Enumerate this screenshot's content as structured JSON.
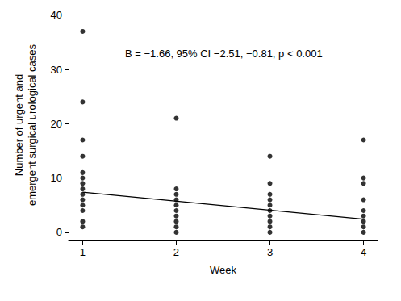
{
  "chart_data": {
    "type": "scatter",
    "annotation": "B = −1.66, 95% CI −2.51, −0.81, p < 0.001",
    "x_label": "Week",
    "y_label": "Number of urgent and\nemergent surgical urological cases",
    "x": [
      1,
      1,
      1,
      1,
      1,
      1,
      1,
      1,
      1,
      1,
      1,
      1,
      1,
      1,
      2,
      2,
      2,
      2,
      2,
      2,
      2,
      2,
      2,
      2,
      3,
      3,
      3,
      3,
      3,
      3,
      3,
      3,
      3,
      3,
      4,
      4,
      4,
      4,
      4,
      4,
      4,
      4,
      4
    ],
    "values": [
      37,
      24,
      17,
      14,
      11,
      10,
      9,
      8,
      7,
      6,
      5,
      4,
      2,
      1,
      21,
      8,
      7,
      6,
      5,
      4,
      3,
      2,
      1,
      0,
      14,
      9,
      7,
      6,
      5,
      4,
      3,
      2,
      1,
      0,
      17,
      10,
      9,
      6,
      4,
      3,
      2,
      1,
      0
    ],
    "color": "#000000",
    "fit_line": {
      "x": [
        1,
        4
      ],
      "values": [
        7.4,
        2.42
      ]
    },
    "xlim": [
      0.85,
      4.15
    ],
    "xticks": [
      1,
      2,
      3,
      4
    ],
    "ylim": [
      -1.5,
      41
    ],
    "yticks": [
      0,
      10,
      20,
      30,
      40
    ],
    "grid": false
  }
}
